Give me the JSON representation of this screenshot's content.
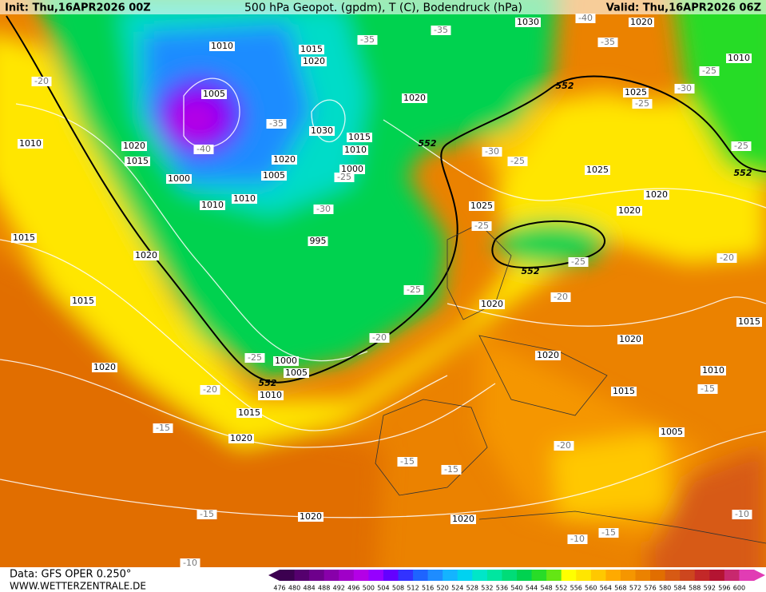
{
  "header": {
    "init": "Init: Thu,16APR2026 00Z",
    "title": "500 hPa Geopot. (gpdm), T (C), Bodendruck (hPa)",
    "valid": "Valid: Thu,16APR2026 06Z"
  },
  "footer": {
    "source": "Data: GFS OPER 0.250°",
    "website": "WWW.WETTERZENTRALE.DE"
  },
  "scale": {
    "labels": [
      "476",
      "480",
      "484",
      "488",
      "492",
      "496",
      "500",
      "504",
      "508",
      "512",
      "516",
      "520",
      "524",
      "528",
      "532",
      "536",
      "540",
      "544",
      "548",
      "552",
      "556",
      "560",
      "564",
      "568",
      "572",
      "576",
      "580",
      "584",
      "588",
      "592",
      "596",
      "600"
    ],
    "colors": [
      "#3c0050",
      "#55006e",
      "#6e008c",
      "#8800aa",
      "#a000c8",
      "#b400e6",
      "#9600ff",
      "#6400ff",
      "#3232ff",
      "#1e64ff",
      "#1e8cff",
      "#14b4ff",
      "#00d2f0",
      "#00e6c8",
      "#00e6a0",
      "#00dc78",
      "#00d250",
      "#28dc28",
      "#64e614",
      "#ffff00",
      "#ffe600",
      "#ffc800",
      "#ffaa00",
      "#f59600",
      "#eb8200",
      "#e16e00",
      "#d75a14",
      "#cd461e",
      "#c32828",
      "#b41432",
      "#c8286e",
      "#e13cb4"
    ]
  },
  "pressure_labels": [
    "1010",
    "1015",
    "1020",
    "1005",
    "1020",
    "1015",
    "1000",
    "1010",
    "1010",
    "1005",
    "1020",
    "1030",
    "1015",
    "1010",
    "1000",
    "995",
    "1010",
    "1015",
    "1020",
    "1015",
    "1020",
    "1000",
    "1005",
    "1010",
    "1015",
    "1020",
    "1020",
    "1020",
    "1020",
    "1030",
    "1020",
    "1010",
    "1025",
    "1025",
    "1020",
    "1020",
    "1025",
    "1020",
    "1020",
    "1020",
    "1010",
    "1015",
    "1015",
    "1005"
  ],
  "temperature_labels": [
    "-35",
    "-35",
    "-40",
    "-30",
    "-25",
    "-30",
    "-25",
    "-25",
    "-25",
    "-25",
    "-20",
    "-20",
    "-25",
    "-20",
    "-20",
    "-15",
    "-15",
    "-15",
    "-15",
    "-20",
    "-15",
    "-20",
    "-25",
    "-30",
    "-25",
    "-35",
    "-40",
    "-35",
    "-25",
    "-10",
    "-10",
    "-15",
    "-10"
  ],
  "height_labels": [
    "552",
    "552",
    "552",
    "552",
    "552"
  ]
}
